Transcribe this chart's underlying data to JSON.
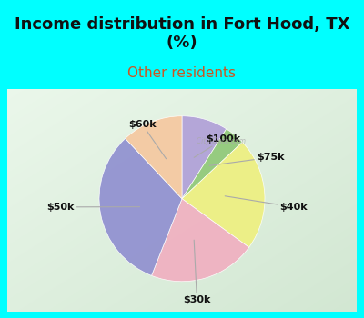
{
  "title": "Income distribution in Fort Hood, TX\n(%)",
  "subtitle": "Other residents",
  "title_color": "#111111",
  "subtitle_color": "#cc5522",
  "bg_cyan": "#00ffff",
  "labels": [
    "$100k",
    "$75k",
    "$40k",
    "$30k",
    "$50k",
    "$60k"
  ],
  "sizes": [
    9,
    4,
    22,
    21,
    32,
    12
  ],
  "colors": [
    "#b0a0d8",
    "#90c878",
    "#eef080",
    "#f0b0c0",
    "#9090d0",
    "#f5c8a0"
  ],
  "startangle": 90,
  "figsize": [
    4.0,
    3.5
  ],
  "dpi": 100,
  "title_fontsize": 13,
  "subtitle_fontsize": 11,
  "label_fontsize": 8
}
